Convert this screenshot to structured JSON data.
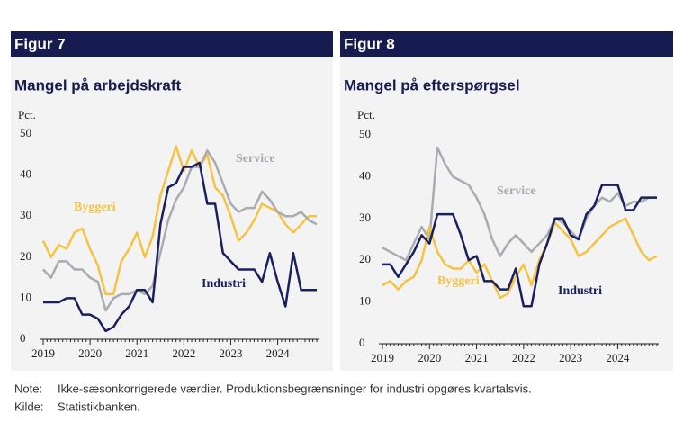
{
  "charts": [
    {
      "chart_data": {
        "type": "line",
        "figure": "Figur 7",
        "title": "Mangel på arbejdskraft",
        "ylabel": "Pct.",
        "categories": [
          "2019",
          null,
          null,
          null,
          null,
          null,
          "2020",
          null,
          null,
          null,
          null,
          null,
          "2021",
          null,
          null,
          null,
          null,
          null,
          "2022",
          null,
          null,
          null,
          null,
          null,
          "2023",
          null,
          null,
          null,
          null,
          null,
          "2024",
          null,
          null,
          null,
          null,
          null
        ],
        "ylim": [
          0,
          50
        ],
        "yticks": [
          0,
          10,
          20,
          30,
          40,
          50
        ],
        "grid": false,
        "series": [
          {
            "name": "Byggeri",
            "color": "#f5c342",
            "values": [
              24,
              20,
              23,
              22,
              26,
              27,
              22,
              18,
              11,
              11,
              19,
              22,
              26,
              20,
              25,
              35,
              41,
              47,
              41,
              46,
              42,
              45,
              37,
              35,
              30,
              24,
              26,
              29,
              33,
              32,
              31,
              28,
              26,
              28,
              30,
              30
            ]
          },
          {
            "name": "Service",
            "color": "#a9abb0",
            "values": [
              17,
              15,
              19,
              19,
              17,
              17,
              15,
              14,
              7,
              10,
              11,
              11,
              12,
              11,
              13,
              21,
              29,
              34,
              37,
              42,
              42,
              46,
              43,
              38,
              33,
              31,
              32,
              32,
              36,
              34,
              31,
              30,
              30,
              31,
              29,
              28
            ]
          },
          {
            "name": "Industri",
            "color": "#1a1f5e",
            "values": [
              9,
              9,
              9,
              10,
              10,
              6,
              6,
              5,
              2,
              3,
              6,
              8,
              12,
              12,
              9,
              28,
              37,
              38,
              42,
              42,
              43,
              33,
              33,
              21,
              19,
              17,
              17,
              17,
              14,
              21,
              14,
              8,
              21,
              12,
              12,
              12
            ]
          }
        ]
      }
    },
    {
      "chart_data": {
        "type": "line",
        "figure": "Figur 8",
        "title": "Mangel på efterspørgsel",
        "ylabel": "Pct.",
        "categories": [
          "2019",
          null,
          null,
          null,
          null,
          null,
          "2020",
          null,
          null,
          null,
          null,
          null,
          "2021",
          null,
          null,
          null,
          null,
          null,
          "2022",
          null,
          null,
          null,
          null,
          null,
          "2023",
          null,
          null,
          null,
          null,
          null,
          "2024",
          null,
          null,
          null,
          null,
          null
        ],
        "ylim": [
          0,
          50
        ],
        "yticks": [
          0,
          10,
          20,
          30,
          40,
          50
        ],
        "grid": false,
        "series": [
          {
            "name": "Service",
            "color": "#a9abb0",
            "values": [
              23,
              22,
              21,
              20,
              24,
              28,
              25,
              47,
              43,
              40,
              39,
              38,
              35,
              31,
              25,
              21,
              24,
              26,
              24,
              22,
              24,
              26,
              30,
              29,
              27,
              25,
              30,
              33,
              35,
              34,
              36,
              33,
              34,
              34,
              35,
              35
            ]
          },
          {
            "name": "Byggeri",
            "color": "#f5c342",
            "values": [
              14,
              15,
              13,
              15,
              16,
              20,
              28,
              22,
              19,
              18,
              18,
              20,
              17,
              19,
              15,
              11,
              12,
              16,
              19,
              14,
              20,
              24,
              29,
              27,
              25,
              21,
              22,
              24,
              26,
              28,
              29,
              30,
              26,
              22,
              20,
              21
            ]
          },
          {
            "name": "Industri",
            "color": "#1a1f5e",
            "values": [
              19,
              19,
              16,
              19,
              22,
              26,
              24,
              31,
              31,
              31,
              26,
              20,
              21,
              15,
              15,
              13,
              13,
              18,
              9,
              9,
              19,
              24,
              30,
              30,
              26,
              25,
              31,
              33,
              38,
              38,
              38,
              32,
              32,
              35,
              35,
              35
            ]
          }
        ]
      }
    }
  ],
  "note": {
    "label": "Note:",
    "text": "Ikke-sæsonkorrigerede værdier. Produktionsbegrænsninger for industri opgøres kvartalsvis."
  },
  "source": {
    "label": "Kilde:",
    "text": "Statistikbanken."
  }
}
